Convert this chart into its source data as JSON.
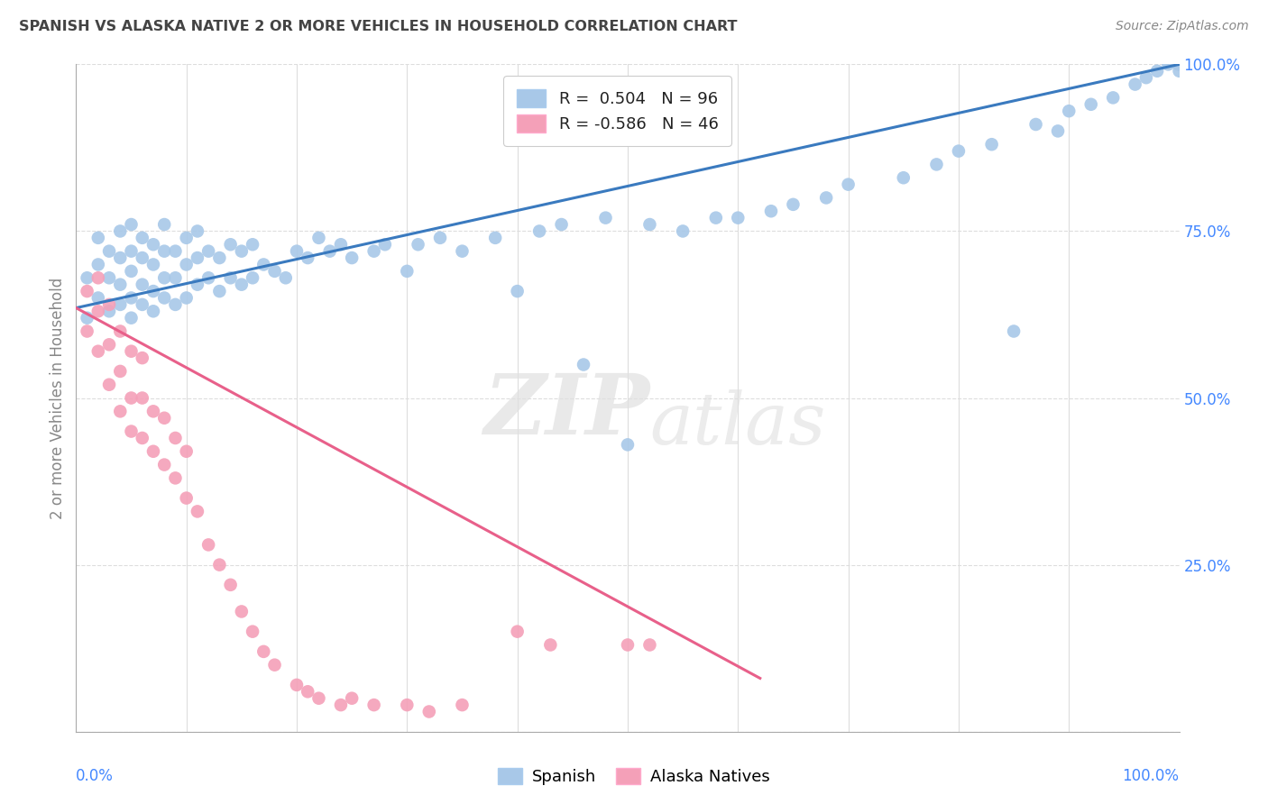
{
  "title": "SPANISH VS ALASKA NATIVE 2 OR MORE VEHICLES IN HOUSEHOLD CORRELATION CHART",
  "source": "Source: ZipAtlas.com",
  "ylabel": "2 or more Vehicles in Household",
  "xlim": [
    0.0,
    1.0
  ],
  "ylim": [
    0.0,
    1.0
  ],
  "yticks": [
    0.0,
    0.25,
    0.5,
    0.75,
    1.0
  ],
  "ytick_labels": [
    "",
    "25.0%",
    "50.0%",
    "75.0%",
    "100.0%"
  ],
  "spanish_color": "#a8c8e8",
  "alaska_color": "#f4a0b8",
  "spanish_line_color": "#3a7abf",
  "alaska_line_color": "#e8608a",
  "watermark_zip": "ZIP",
  "watermark_atlas": "atlas",
  "spanish_line_x0": 0.0,
  "spanish_line_y0": 0.635,
  "spanish_line_x1": 1.0,
  "spanish_line_y1": 1.0,
  "alaska_line_x0": 0.0,
  "alaska_line_y0": 0.635,
  "alaska_line_x1": 0.62,
  "alaska_line_y1": 0.08,
  "spanish_x": [
    0.01,
    0.01,
    0.02,
    0.02,
    0.02,
    0.03,
    0.03,
    0.03,
    0.04,
    0.04,
    0.04,
    0.04,
    0.05,
    0.05,
    0.05,
    0.05,
    0.05,
    0.06,
    0.06,
    0.06,
    0.06,
    0.07,
    0.07,
    0.07,
    0.07,
    0.08,
    0.08,
    0.08,
    0.08,
    0.09,
    0.09,
    0.09,
    0.1,
    0.1,
    0.1,
    0.11,
    0.11,
    0.11,
    0.12,
    0.12,
    0.13,
    0.13,
    0.14,
    0.14,
    0.15,
    0.15,
    0.16,
    0.16,
    0.17,
    0.18,
    0.19,
    0.2,
    0.21,
    0.22,
    0.23,
    0.24,
    0.25,
    0.27,
    0.28,
    0.3,
    0.31,
    0.33,
    0.35,
    0.38,
    0.4,
    0.42,
    0.44,
    0.46,
    0.48,
    0.5,
    0.52,
    0.55,
    0.58,
    0.6,
    0.63,
    0.65,
    0.68,
    0.7,
    0.75,
    0.78,
    0.8,
    0.83,
    0.85,
    0.87,
    0.89,
    0.9,
    0.92,
    0.94,
    0.96,
    0.97,
    0.98,
    0.99,
    1.0,
    1.0,
    1.0,
    1.0
  ],
  "spanish_y": [
    0.62,
    0.68,
    0.65,
    0.7,
    0.74,
    0.63,
    0.68,
    0.72,
    0.64,
    0.67,
    0.71,
    0.75,
    0.62,
    0.65,
    0.69,
    0.72,
    0.76,
    0.64,
    0.67,
    0.71,
    0.74,
    0.63,
    0.66,
    0.7,
    0.73,
    0.65,
    0.68,
    0.72,
    0.76,
    0.64,
    0.68,
    0.72,
    0.65,
    0.7,
    0.74,
    0.67,
    0.71,
    0.75,
    0.68,
    0.72,
    0.66,
    0.71,
    0.68,
    0.73,
    0.67,
    0.72,
    0.68,
    0.73,
    0.7,
    0.69,
    0.68,
    0.72,
    0.71,
    0.74,
    0.72,
    0.73,
    0.71,
    0.72,
    0.73,
    0.69,
    0.73,
    0.74,
    0.72,
    0.74,
    0.66,
    0.75,
    0.76,
    0.55,
    0.77,
    0.43,
    0.76,
    0.75,
    0.77,
    0.77,
    0.78,
    0.79,
    0.8,
    0.82,
    0.83,
    0.85,
    0.87,
    0.88,
    0.6,
    0.91,
    0.9,
    0.93,
    0.94,
    0.95,
    0.97,
    0.98,
    0.99,
    1.0,
    1.0,
    0.99,
    1.0,
    1.0
  ],
  "alaska_x": [
    0.01,
    0.01,
    0.02,
    0.02,
    0.02,
    0.03,
    0.03,
    0.03,
    0.04,
    0.04,
    0.04,
    0.05,
    0.05,
    0.05,
    0.06,
    0.06,
    0.06,
    0.07,
    0.07,
    0.08,
    0.08,
    0.09,
    0.09,
    0.1,
    0.1,
    0.11,
    0.12,
    0.13,
    0.14,
    0.15,
    0.16,
    0.17,
    0.18,
    0.2,
    0.21,
    0.22,
    0.24,
    0.25,
    0.27,
    0.3,
    0.32,
    0.35,
    0.4,
    0.43,
    0.5,
    0.52
  ],
  "alaska_y": [
    0.6,
    0.66,
    0.57,
    0.63,
    0.68,
    0.52,
    0.58,
    0.64,
    0.48,
    0.54,
    0.6,
    0.45,
    0.5,
    0.57,
    0.44,
    0.5,
    0.56,
    0.42,
    0.48,
    0.4,
    0.47,
    0.38,
    0.44,
    0.35,
    0.42,
    0.33,
    0.28,
    0.25,
    0.22,
    0.18,
    0.15,
    0.12,
    0.1,
    0.07,
    0.06,
    0.05,
    0.04,
    0.05,
    0.04,
    0.04,
    0.03,
    0.04,
    0.15,
    0.13,
    0.13,
    0.13
  ]
}
